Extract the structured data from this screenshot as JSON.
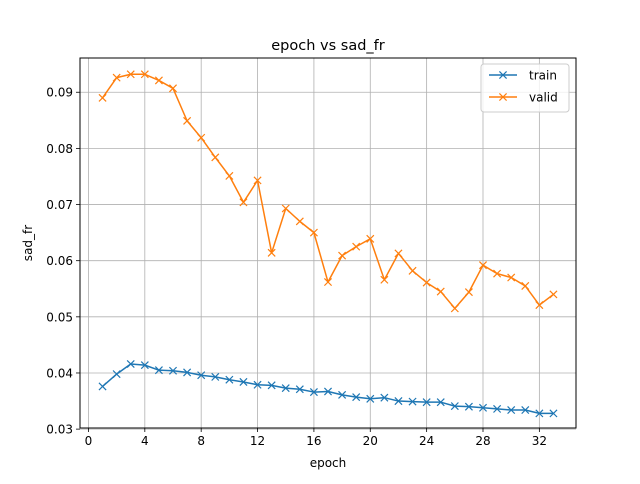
{
  "chart_data": {
    "type": "line",
    "title": "epoch vs sad_fr",
    "xlabel": "epoch",
    "ylabel": "sad_fr",
    "xlim": [
      -0.6,
      34.6
    ],
    "ylim": [
      0.0302,
      0.0961
    ],
    "xticks": [
      0,
      4,
      8,
      12,
      16,
      20,
      24,
      28,
      32
    ],
    "yticks": [
      0.03,
      0.04,
      0.05,
      0.06,
      0.07,
      0.08,
      0.09
    ],
    "ytick_labels": [
      "0.03",
      "0.04",
      "0.05",
      "0.06",
      "0.07",
      "0.08",
      "0.09"
    ],
    "grid": true,
    "legend_position": "top-right",
    "marker": "x",
    "x": [
      1,
      2,
      3,
      4,
      5,
      6,
      7,
      8,
      9,
      10,
      11,
      12,
      13,
      14,
      15,
      16,
      17,
      18,
      19,
      20,
      21,
      22,
      23,
      24,
      25,
      26,
      27,
      28,
      29,
      30,
      31,
      32,
      33
    ],
    "series": [
      {
        "name": "train",
        "color": "#1f77b4",
        "values": [
          0.0376,
          0.0398,
          0.0416,
          0.0414,
          0.0405,
          0.0404,
          0.0401,
          0.0396,
          0.0393,
          0.0388,
          0.0384,
          0.0379,
          0.0378,
          0.0373,
          0.0371,
          0.0366,
          0.0367,
          0.0361,
          0.0357,
          0.0354,
          0.0356,
          0.035,
          0.0349,
          0.0348,
          0.0348,
          0.0341,
          0.034,
          0.0338,
          0.0336,
          0.0334,
          0.0334,
          0.0328,
          0.0328
        ]
      },
      {
        "name": "valid",
        "color": "#ff7f0e",
        "values": [
          0.089,
          0.0926,
          0.0932,
          0.0932,
          0.0921,
          0.0907,
          0.0849,
          0.0819,
          0.0784,
          0.0751,
          0.0704,
          0.0743,
          0.0614,
          0.0693,
          0.067,
          0.065,
          0.0562,
          0.0609,
          0.0625,
          0.0639,
          0.0566,
          0.0613,
          0.0582,
          0.0561,
          0.0545,
          0.0515,
          0.0544,
          0.0592,
          0.0577,
          0.057,
          0.0555,
          0.0521,
          0.054
        ]
      }
    ]
  }
}
